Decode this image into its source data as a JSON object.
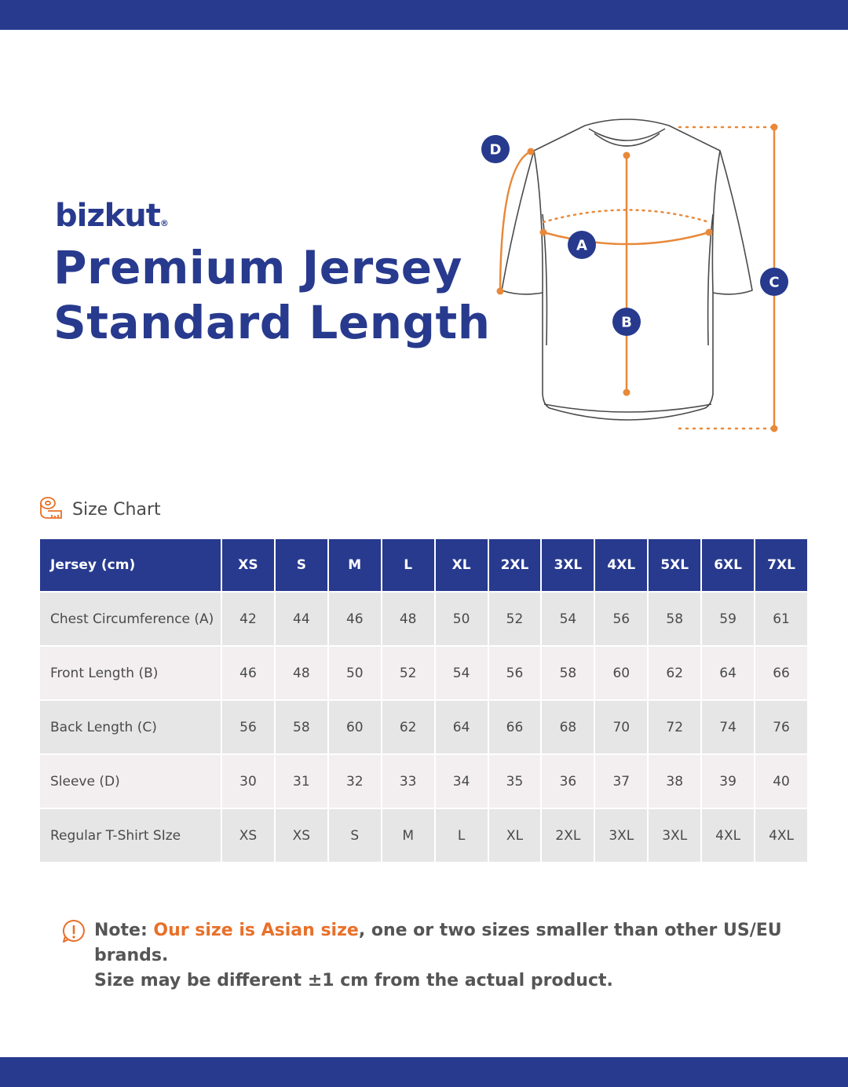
{
  "brand": {
    "name": "bizkut",
    "mark": "®"
  },
  "title": {
    "line1": "Premium Jersey",
    "line2": "Standard Length"
  },
  "diagram": {
    "markers": {
      "a": "A",
      "b": "B",
      "c": "C",
      "d": "D"
    },
    "colors": {
      "line": "#e8893a",
      "badge": "#273a8e",
      "outline": "#4a4a4a"
    }
  },
  "size_chart": {
    "heading": "Size Chart",
    "icon": "measuring-tape-icon",
    "columns": [
      "Jersey (cm)",
      "XS",
      "S",
      "M",
      "L",
      "XL",
      "2XL",
      "3XL",
      "4XL",
      "5XL",
      "6XL",
      "7XL"
    ],
    "rows": [
      {
        "label": "Chest Circumference (A)",
        "values": [
          "42",
          "44",
          "46",
          "48",
          "50",
          "52",
          "54",
          "56",
          "58",
          "59",
          "61"
        ]
      },
      {
        "label": "Front Length (B)",
        "values": [
          "46",
          "48",
          "50",
          "52",
          "54",
          "56",
          "58",
          "60",
          "62",
          "64",
          "66"
        ]
      },
      {
        "label": "Back Length (C)",
        "values": [
          "56",
          "58",
          "60",
          "62",
          "64",
          "66",
          "68",
          "70",
          "72",
          "74",
          "76"
        ]
      },
      {
        "label": "Sleeve (D)",
        "values": [
          "30",
          "31",
          "32",
          "33",
          "34",
          "35",
          "36",
          "37",
          "38",
          "39",
          "40"
        ]
      },
      {
        "label": "Regular T-Shirt SIze",
        "values": [
          "XS",
          "XS",
          "S",
          "M",
          "L",
          "XL",
          "2XL",
          "3XL",
          "3XL",
          "4XL",
          "4XL"
        ]
      }
    ]
  },
  "note": {
    "prefix": "Note: ",
    "highlight": "Our size is Asian size",
    "rest": ", one or two sizes smaller than other US/EU brands.",
    "line2": "Size may be different ±1 cm from the actual product.",
    "icon": "alert-icon"
  },
  "colors": {
    "primary": "#273a8e",
    "accent": "#e8702a"
  }
}
